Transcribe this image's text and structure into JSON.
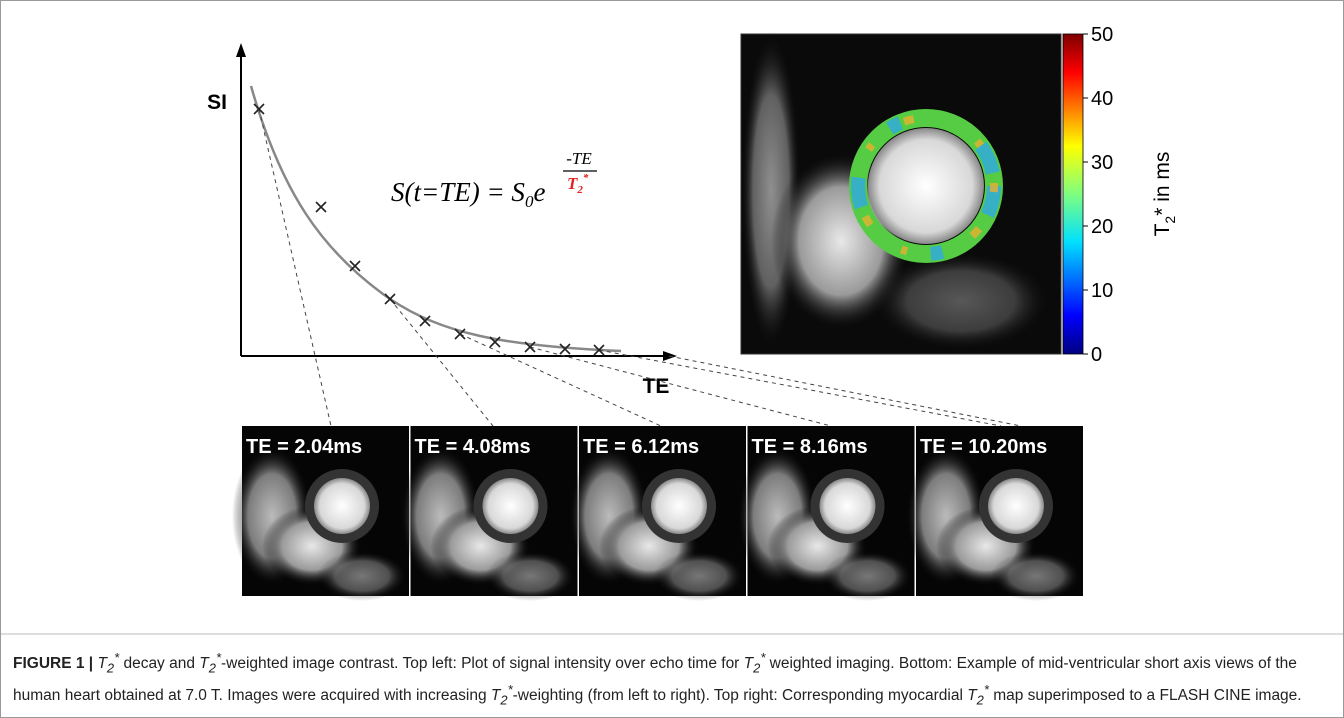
{
  "plot": {
    "y_label": "SI",
    "x_label": "TE",
    "formula": {
      "lhs": "S(t=TE) = S",
      "sub": "0",
      "base": "e",
      "exp_num": "-TE",
      "exp_den": "T",
      "exp_den_sub": "2",
      "exp_den_sup": "*"
    }
  },
  "colorbar": {
    "lim": [
      0,
      50
    ],
    "ticks": [
      0,
      10,
      20,
      30,
      40,
      50
    ],
    "label": "T",
    "label_sub": "2",
    "label_rest": "* in ms"
  },
  "images": [
    {
      "label": "TE = 2.04ms"
    },
    {
      "label": "TE = 4.08ms"
    },
    {
      "label": "TE = 6.12ms"
    },
    {
      "label": "TE = 8.16ms"
    },
    {
      "label": "TE = 10.20ms"
    }
  ],
  "caption": {
    "label": "FIGURE 1 |",
    "segments": [
      "T",
      "2",
      "*",
      " decay and ",
      "T",
      "2",
      "*",
      "-weighted image contrast. Top left: Plot of signal intensity over echo time for ",
      "T",
      "2",
      "*",
      " weighted imaging. Bottom: Example of mid-ventricular short axis views of the human heart obtained at 7.0 T. Images were acquired with increasing ",
      "T",
      "2",
      "*",
      "-weighting (from left to right). Top right: Corresponding myocardial ",
      "T",
      "2",
      "*",
      " map superimposed to a FLASH CINE image."
    ]
  }
}
